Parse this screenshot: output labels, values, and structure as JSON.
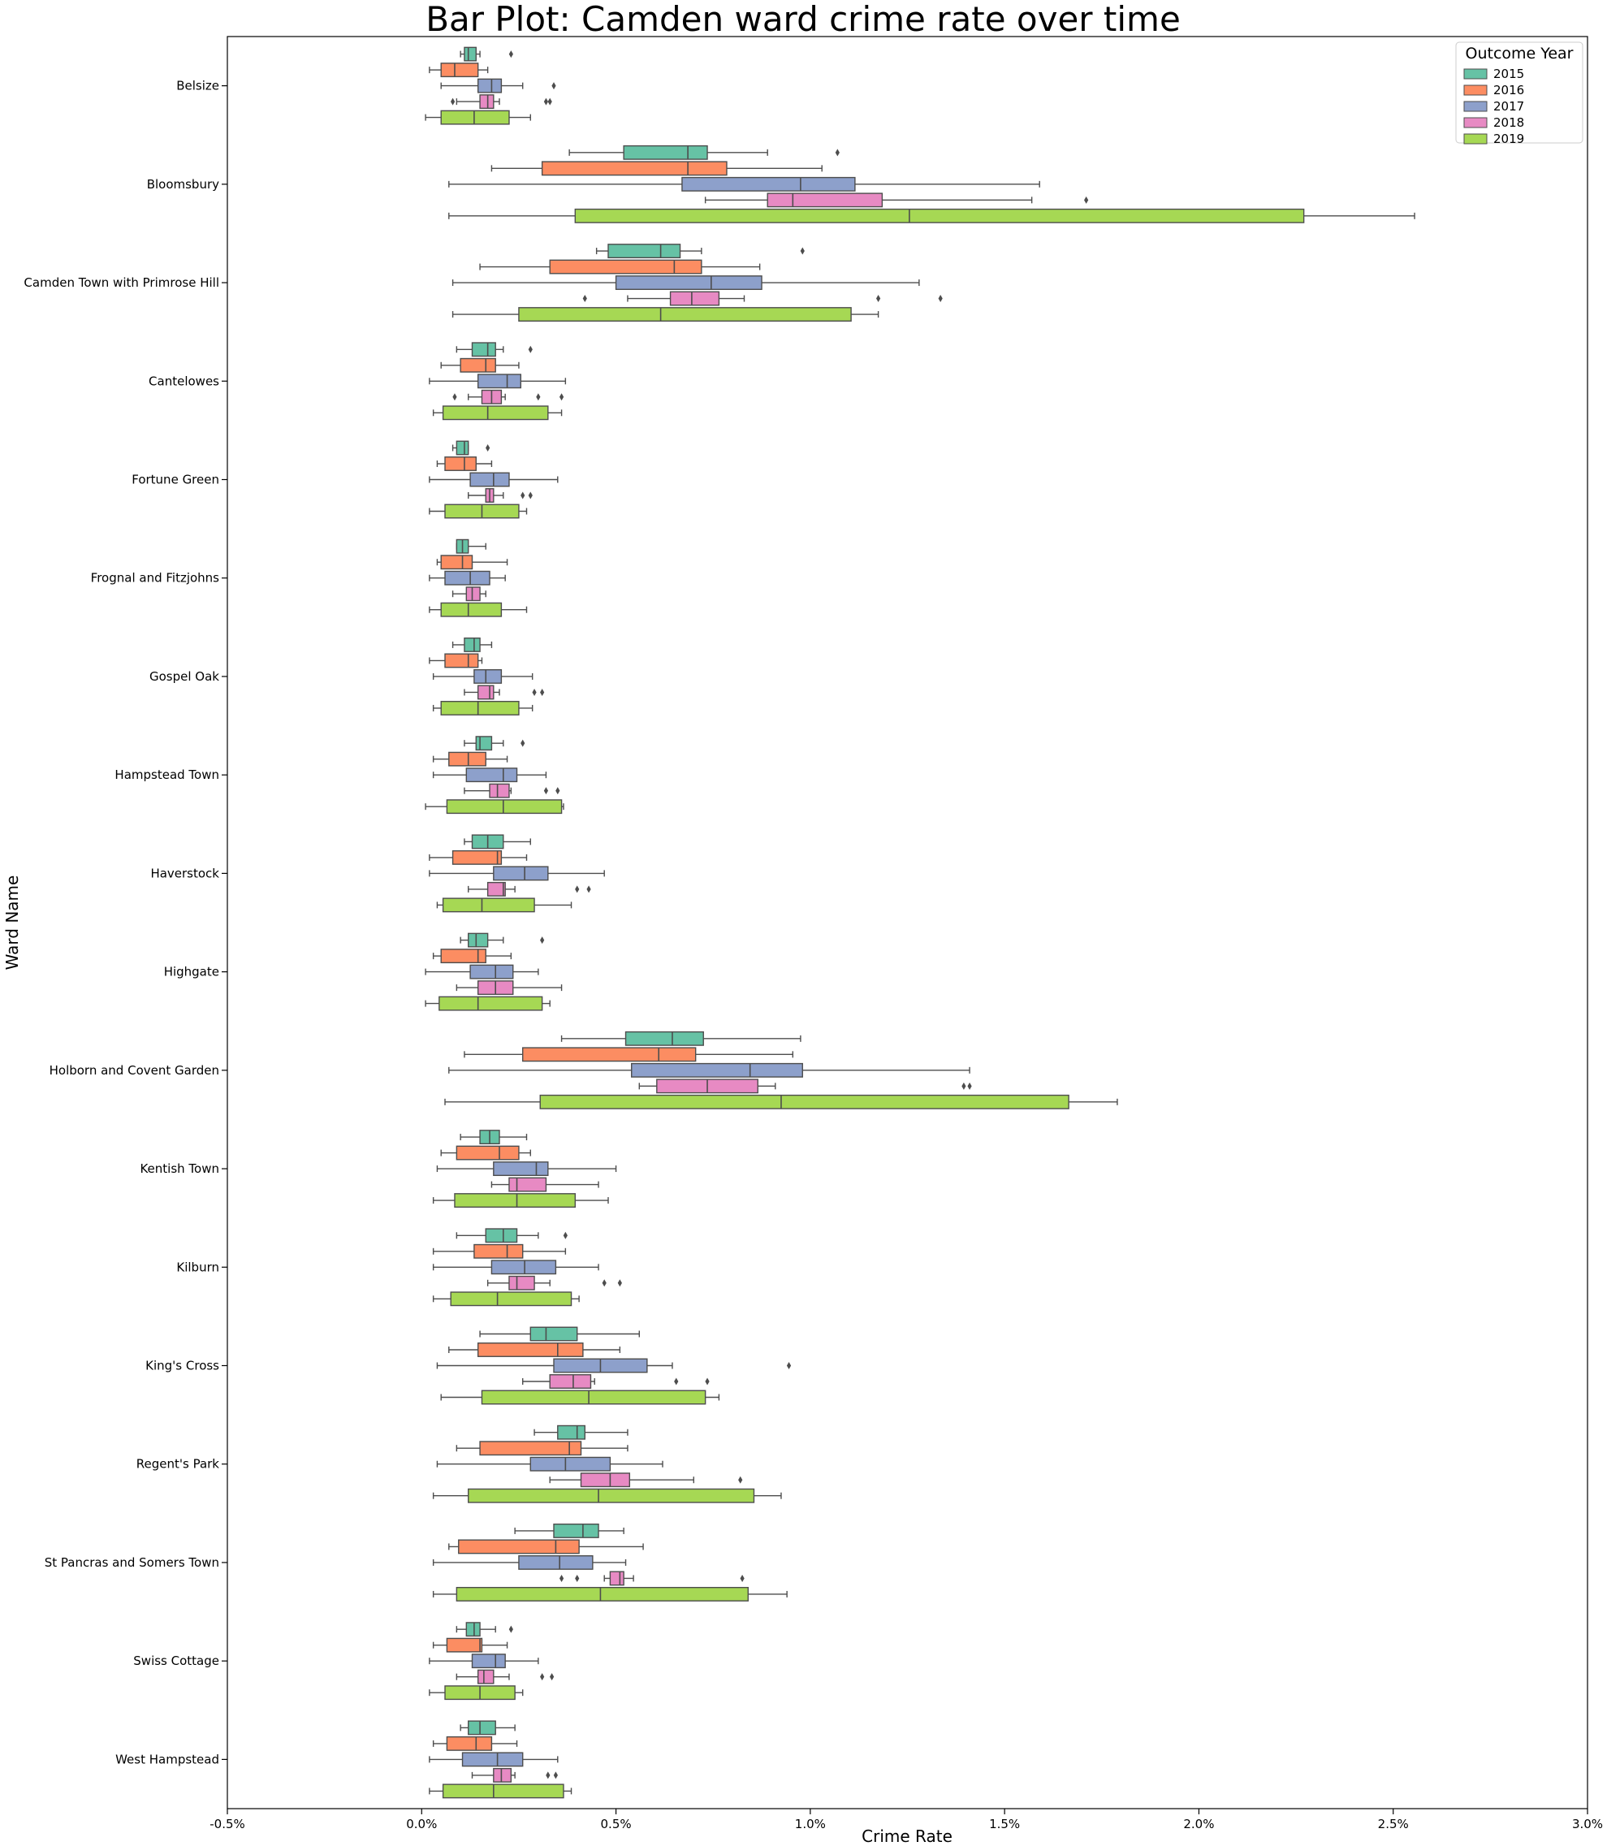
{
  "chart_data": {
    "type": "box",
    "orientation": "horizontal",
    "title": "Bar Plot: Camden ward crime rate over time",
    "xlabel": "Crime Rate",
    "ylabel": "Ward Name",
    "xlim": [
      -0.5,
      3.0
    ],
    "x_ticks": [
      -0.5,
      0.0,
      0.5,
      1.0,
      1.5,
      2.0,
      2.5,
      3.0
    ],
    "x_tick_labels": [
      "-0.5%",
      "0.0%",
      "0.5%",
      "1.0%",
      "1.5%",
      "2.0%",
      "2.5%",
      "3.0%"
    ],
    "grid": false,
    "legend": {
      "title": "Outcome Year",
      "position": "top-right",
      "entries": [
        {
          "label": "2015",
          "color": "#66c2a5"
        },
        {
          "label": "2016",
          "color": "#fc8d62"
        },
        {
          "label": "2017",
          "color": "#8da0cb"
        },
        {
          "label": "2018",
          "color": "#e78ac3"
        },
        {
          "label": "2019",
          "color": "#a6d854"
        }
      ]
    },
    "categories": [
      "Belsize",
      "Bloomsbury",
      "Camden Town with Primrose Hill",
      "Cantelowes",
      "Fortune Green",
      "Frognal and Fitzjohns",
      "Gospel Oak",
      "Hampstead Town",
      "Haverstock",
      "Highgate",
      "Holborn and Covent Garden",
      "Kentish Town",
      "Kilburn",
      "King's Cross",
      "Regent's Park",
      "St Pancras and Somers Town",
      "Swiss Cottage",
      "West Hampstead"
    ],
    "box_stats_note": "each box: [whisker_low, q1, median, q3, whisker_high, outliers]",
    "series": [
      {
        "name": "2015",
        "boxes": [
          [
            0.1,
            0.11,
            0.12,
            0.14,
            0.15,
            [
              0.23
            ]
          ],
          [
            0.38,
            0.52,
            0.685,
            0.735,
            0.89,
            [
              1.07
            ]
          ],
          [
            0.45,
            0.48,
            0.615,
            0.665,
            0.72,
            [
              0.98
            ]
          ],
          [
            0.09,
            0.13,
            0.17,
            0.19,
            0.21,
            [
              0.28
            ]
          ],
          [
            0.08,
            0.09,
            0.11,
            0.12,
            0.12,
            [
              0.17
            ]
          ],
          [
            0.09,
            0.09,
            0.105,
            0.12,
            0.165,
            []
          ],
          [
            0.08,
            0.11,
            0.135,
            0.15,
            0.18,
            []
          ],
          [
            0.11,
            0.14,
            0.15,
            0.18,
            0.21,
            [
              0.26
            ]
          ],
          [
            0.11,
            0.13,
            0.17,
            0.21,
            0.28,
            []
          ],
          [
            0.1,
            0.12,
            0.14,
            0.17,
            0.21,
            [
              0.31
            ]
          ],
          [
            0.36,
            0.525,
            0.645,
            0.725,
            0.975,
            []
          ],
          [
            0.1,
            0.15,
            0.175,
            0.2,
            0.27,
            []
          ],
          [
            0.09,
            0.165,
            0.21,
            0.245,
            0.3,
            [
              0.37
            ]
          ],
          [
            0.15,
            0.28,
            0.32,
            0.4,
            0.56,
            []
          ],
          [
            0.29,
            0.35,
            0.4,
            0.42,
            0.53,
            []
          ],
          [
            0.24,
            0.34,
            0.415,
            0.455,
            0.52,
            []
          ],
          [
            0.09,
            0.115,
            0.135,
            0.15,
            0.19,
            [
              0.23
            ]
          ],
          [
            0.1,
            0.12,
            0.15,
            0.19,
            0.24,
            []
          ]
        ]
      },
      {
        "name": "2016",
        "boxes": [
          [
            0.02,
            0.05,
            0.085,
            0.145,
            0.17,
            []
          ],
          [
            0.18,
            0.31,
            0.685,
            0.785,
            1.03,
            []
          ],
          [
            0.15,
            0.33,
            0.65,
            0.72,
            0.87,
            []
          ],
          [
            0.05,
            0.1,
            0.165,
            0.19,
            0.25,
            []
          ],
          [
            0.04,
            0.06,
            0.11,
            0.14,
            0.18,
            []
          ],
          [
            0.04,
            0.05,
            0.105,
            0.13,
            0.22,
            []
          ],
          [
            0.02,
            0.06,
            0.12,
            0.145,
            0.155,
            []
          ],
          [
            0.03,
            0.07,
            0.12,
            0.165,
            0.22,
            []
          ],
          [
            0.02,
            0.08,
            0.195,
            0.205,
            0.27,
            []
          ],
          [
            0.03,
            0.05,
            0.145,
            0.165,
            0.23,
            []
          ],
          [
            0.11,
            0.26,
            0.61,
            0.705,
            0.955,
            []
          ],
          [
            0.05,
            0.09,
            0.2,
            0.25,
            0.28,
            []
          ],
          [
            0.03,
            0.135,
            0.22,
            0.26,
            0.37,
            []
          ],
          [
            0.07,
            0.145,
            0.35,
            0.415,
            0.51,
            []
          ],
          [
            0.09,
            0.15,
            0.38,
            0.41,
            0.53,
            []
          ],
          [
            0.07,
            0.095,
            0.345,
            0.405,
            0.57,
            []
          ],
          [
            0.03,
            0.065,
            0.15,
            0.155,
            0.22,
            []
          ],
          [
            0.03,
            0.065,
            0.14,
            0.18,
            0.245,
            []
          ]
        ]
      },
      {
        "name": "2017",
        "boxes": [
          [
            0.05,
            0.145,
            0.18,
            0.205,
            0.26,
            [
              0.34
            ]
          ],
          [
            0.07,
            0.67,
            0.975,
            1.115,
            1.59,
            []
          ],
          [
            0.08,
            0.5,
            0.745,
            0.875,
            1.28,
            []
          ],
          [
            0.02,
            0.145,
            0.22,
            0.255,
            0.37,
            []
          ],
          [
            0.02,
            0.125,
            0.185,
            0.225,
            0.35,
            []
          ],
          [
            0.02,
            0.06,
            0.125,
            0.175,
            0.215,
            []
          ],
          [
            0.03,
            0.135,
            0.165,
            0.205,
            0.285,
            []
          ],
          [
            0.03,
            0.115,
            0.21,
            0.245,
            0.32,
            []
          ],
          [
            0.02,
            0.185,
            0.265,
            0.325,
            0.47,
            []
          ],
          [
            0.01,
            0.125,
            0.19,
            0.235,
            0.3,
            []
          ],
          [
            0.07,
            0.54,
            0.845,
            0.98,
            1.41,
            []
          ],
          [
            0.04,
            0.185,
            0.295,
            0.325,
            0.5,
            []
          ],
          [
            0.03,
            0.18,
            0.265,
            0.345,
            0.455,
            []
          ],
          [
            0.04,
            0.34,
            0.46,
            0.58,
            0.645,
            [
              0.945
            ]
          ],
          [
            0.04,
            0.28,
            0.37,
            0.485,
            0.62,
            []
          ],
          [
            0.03,
            0.25,
            0.355,
            0.44,
            0.525,
            []
          ],
          [
            0.02,
            0.13,
            0.19,
            0.215,
            0.3,
            []
          ],
          [
            0.02,
            0.105,
            0.195,
            0.26,
            0.35,
            []
          ]
        ]
      },
      {
        "name": "2018",
        "boxes": [
          [
            0.09,
            0.15,
            0.17,
            0.185,
            0.2,
            [
              0.08,
              0.33,
              0.32
            ]
          ],
          [
            0.73,
            0.89,
            0.955,
            1.185,
            1.57,
            [
              1.71
            ]
          ],
          [
            0.53,
            0.64,
            0.695,
            0.765,
            0.83,
            [
              0.42,
              1.175,
              1.335
            ]
          ],
          [
            0.12,
            0.155,
            0.18,
            0.205,
            0.215,
            [
              0.085,
              0.3,
              0.36
            ]
          ],
          [
            0.12,
            0.165,
            0.175,
            0.185,
            0.21,
            [
              0.26,
              0.28
            ]
          ],
          [
            0.08,
            0.115,
            0.13,
            0.15,
            0.165,
            []
          ],
          [
            0.11,
            0.145,
            0.175,
            0.185,
            0.2,
            [
              0.29,
              0.31
            ]
          ],
          [
            0.11,
            0.175,
            0.195,
            0.225,
            0.23,
            [
              0.32,
              0.35
            ]
          ],
          [
            0.12,
            0.17,
            0.21,
            0.215,
            0.24,
            [
              0.4,
              0.43
            ]
          ],
          [
            0.09,
            0.145,
            0.19,
            0.235,
            0.36,
            []
          ],
          [
            0.56,
            0.605,
            0.735,
            0.865,
            0.91,
            [
              1.395,
              1.41
            ]
          ],
          [
            0.18,
            0.225,
            0.245,
            0.32,
            0.455,
            []
          ],
          [
            0.17,
            0.225,
            0.245,
            0.29,
            0.33,
            [
              0.47,
              0.51
            ]
          ],
          [
            0.26,
            0.33,
            0.39,
            0.435,
            0.445,
            [
              0.655,
              0.735
            ]
          ],
          [
            0.33,
            0.41,
            0.485,
            0.535,
            0.7,
            [
              0.82
            ]
          ],
          [
            0.47,
            0.485,
            0.51,
            0.52,
            0.545,
            [
              0.36,
              0.4,
              0.825
            ]
          ],
          [
            0.09,
            0.145,
            0.16,
            0.185,
            0.225,
            [
              0.31,
              0.335
            ]
          ],
          [
            0.13,
            0.185,
            0.205,
            0.23,
            0.24,
            [
              0.325,
              0.345
            ]
          ]
        ]
      },
      {
        "name": "2019",
        "boxes": [
          [
            0.01,
            0.05,
            0.135,
            0.225,
            0.28,
            []
          ],
          [
            0.07,
            0.395,
            1.255,
            2.27,
            2.555,
            []
          ],
          [
            0.08,
            0.25,
            0.615,
            1.105,
            1.175,
            []
          ],
          [
            0.03,
            0.055,
            0.17,
            0.325,
            0.36,
            []
          ],
          [
            0.02,
            0.06,
            0.155,
            0.25,
            0.27,
            []
          ],
          [
            0.02,
            0.05,
            0.12,
            0.205,
            0.27,
            []
          ],
          [
            0.03,
            0.05,
            0.145,
            0.25,
            0.285,
            []
          ],
          [
            0.01,
            0.065,
            0.21,
            0.36,
            0.365,
            []
          ],
          [
            0.04,
            0.055,
            0.155,
            0.29,
            0.385,
            []
          ],
          [
            0.01,
            0.045,
            0.145,
            0.31,
            0.33,
            []
          ],
          [
            0.06,
            0.305,
            0.925,
            1.665,
            1.79,
            []
          ],
          [
            0.03,
            0.085,
            0.245,
            0.395,
            0.48,
            []
          ],
          [
            0.03,
            0.075,
            0.195,
            0.385,
            0.405,
            []
          ],
          [
            0.05,
            0.155,
            0.43,
            0.73,
            0.765,
            []
          ],
          [
            0.03,
            0.12,
            0.455,
            0.855,
            0.925,
            []
          ],
          [
            0.03,
            0.09,
            0.46,
            0.84,
            0.94,
            []
          ],
          [
            0.02,
            0.06,
            0.15,
            0.24,
            0.26,
            []
          ],
          [
            0.02,
            0.055,
            0.185,
            0.365,
            0.385,
            []
          ]
        ]
      }
    ]
  }
}
